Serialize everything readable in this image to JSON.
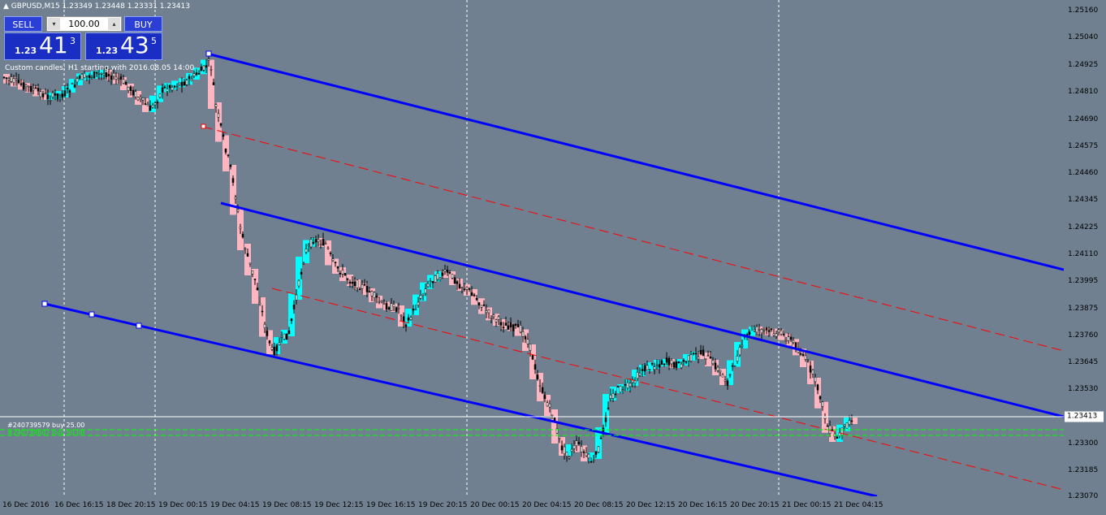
{
  "symbol_bar": {
    "arrow": "▲",
    "text": "GBPUSD,M15  1.23349 1.23448 1.23331 1.23413"
  },
  "trade_panel": {
    "sell_label": "SELL",
    "buy_label": "BUY",
    "lot_value": "100.00",
    "down_arrow": "▾",
    "up_arrow": "▴",
    "sell_quote": {
      "small": "1.23",
      "big": "41",
      "sup": "3"
    },
    "buy_quote": {
      "small": "1.23",
      "big": "43",
      "sup": "5"
    }
  },
  "indicator_label": "Custom candles: H1 starting with 2016.08.05 14:00",
  "orders": [
    {
      "text": "#240739579 buy 25.00",
      "color": "#ffffff"
    },
    {
      "text": "#240738607 buy 50.00",
      "color": "#00ff00"
    }
  ],
  "price_axis": {
    "labels": [
      "1.25160",
      "1.25040",
      "1.24925",
      "1.24810",
      "1.24690",
      "1.24575",
      "1.24460",
      "1.24345",
      "1.24225",
      "1.24110",
      "1.23995",
      "1.23875",
      "1.23760",
      "1.23645",
      "1.23530",
      "1.23300",
      "1.23185",
      "1.23070"
    ],
    "current_price": "1.23413"
  },
  "time_axis": {
    "labels": [
      "16 Dec 2016",
      "16 Dec 16:15",
      "18 Dec 20:15",
      "19 Dec 00:15",
      "19 Dec 04:15",
      "19 Dec 08:15",
      "19 Dec 12:15",
      "19 Dec 16:15",
      "19 Dec 20:15",
      "20 Dec 00:15",
      "20 Dec 04:15",
      "20 Dec 08:15",
      "20 Dec 12:15",
      "20 Dec 16:15",
      "20 Dec 20:15",
      "21 Dec 00:15",
      "21 Dec 04:15"
    ]
  },
  "colors": {
    "background": "#708090",
    "channel": "#0000ff",
    "midline": "#ff0000",
    "bull_candle": "#00ffff",
    "bear_candle": "#ffb6c1",
    "grid": "#ffffff"
  }
}
